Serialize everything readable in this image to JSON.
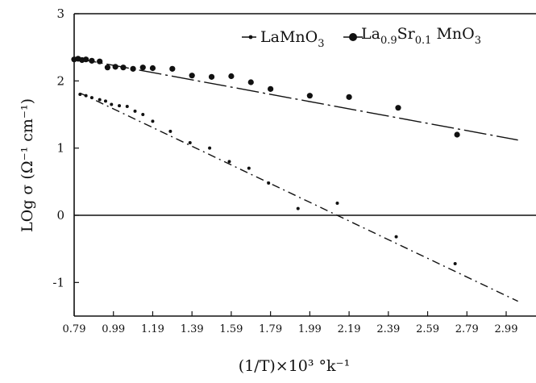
{
  "chart_data": {
    "type": "scatter",
    "title": "",
    "xlabel": "(1/T)×10³ °k⁻¹",
    "ylabel": "LOg σ (Ω⁻¹ cm⁻¹)",
    "xlim": [
      0.79,
      3.05
    ],
    "ylim": [
      -1.45,
      3.0
    ],
    "x_ticks": [
      0.79,
      0.99,
      1.19,
      1.39,
      1.59,
      1.79,
      1.99,
      2.19,
      2.39,
      2.59,
      2.79,
      2.99
    ],
    "x_tick_labels": [
      "0.79",
      "0.99",
      "1.19",
      "1.39",
      "1.59",
      "1.79",
      "1.99",
      "2.19",
      "2.39",
      "2.59",
      "2.79",
      "2.99"
    ],
    "y_ticks": [
      3,
      2,
      1,
      0,
      -1
    ],
    "y_tick_labels": [
      "3",
      "2",
      "1",
      "0",
      "-1"
    ],
    "grid": false,
    "legend_position": "top-right",
    "series": [
      {
        "name": "LaMnO3",
        "legend_label": "LaMnO",
        "legend_sub": "3",
        "marker": "small-dot",
        "line_style": "dash-dot",
        "color": "#111111",
        "x": [
          0.82,
          0.85,
          0.88,
          0.92,
          0.95,
          0.98,
          1.02,
          1.06,
          1.1,
          1.14,
          1.19,
          1.28,
          1.38,
          1.48,
          1.58,
          1.68,
          1.78,
          1.93,
          2.13,
          2.43,
          2.73
        ],
        "y": [
          1.8,
          1.78,
          1.75,
          1.72,
          1.7,
          1.65,
          1.63,
          1.62,
          1.55,
          1.5,
          1.4,
          1.25,
          1.08,
          1.0,
          0.8,
          0.7,
          0.48,
          0.1,
          0.18,
          -0.32,
          -0.72
        ],
        "fit_line": {
          "x": [
            0.82,
            3.05
          ],
          "y": [
            1.82,
            -1.28
          ]
        }
      },
      {
        "name": "La0.9Sr0.1MnO3",
        "legend_label": "La",
        "legend_sub": "0.9",
        "legend_mid": "Sr",
        "legend_sub2": "0.1",
        "legend_tail": " MnO",
        "legend_sub3": "3",
        "marker": "large-dot",
        "line_style": "dash-dot",
        "color": "#111111",
        "x": [
          0.79,
          0.81,
          0.83,
          0.85,
          0.88,
          0.92,
          0.96,
          1.0,
          1.04,
          1.09,
          1.14,
          1.19,
          1.29,
          1.39,
          1.49,
          1.59,
          1.69,
          1.79,
          1.99,
          2.19,
          2.44,
          2.74
        ],
        "y": [
          2.32,
          2.33,
          2.31,
          2.32,
          2.3,
          2.29,
          2.2,
          2.21,
          2.2,
          2.18,
          2.2,
          2.19,
          2.18,
          2.08,
          2.06,
          2.07,
          1.98,
          1.88,
          1.78,
          1.76,
          1.6,
          1.2
        ],
        "fit_line": {
          "x": [
            0.79,
            3.05
          ],
          "y": [
            2.34,
            1.12
          ]
        }
      }
    ]
  }
}
